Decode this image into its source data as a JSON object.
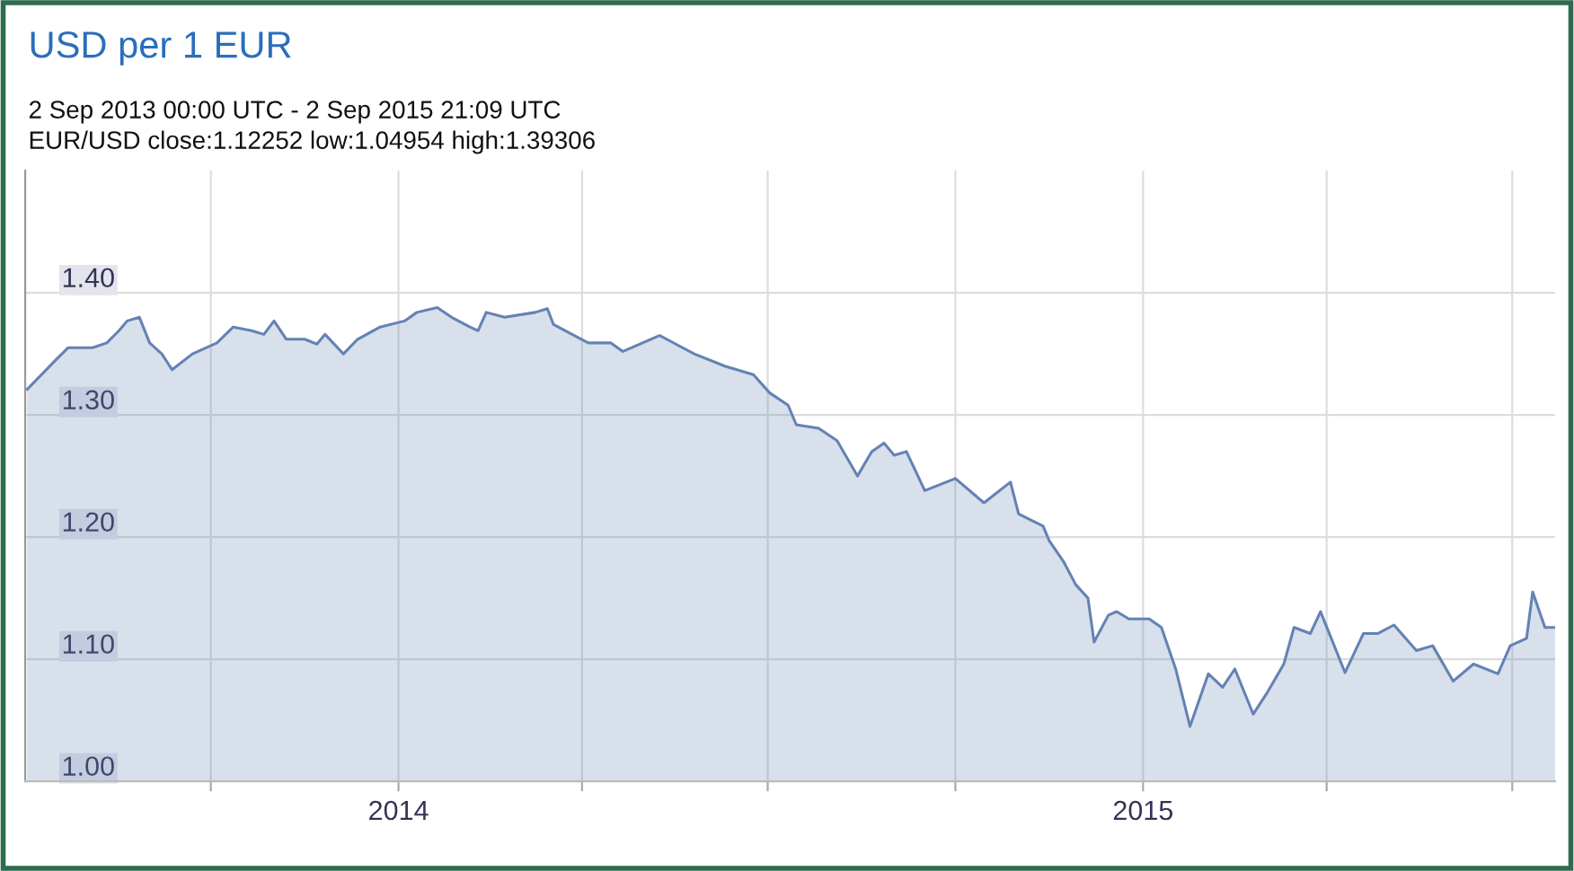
{
  "chart_data": {
    "type": "area",
    "title": "USD per 1 EUR",
    "subtitle": "2 Sep 2013 00:00 UTC - 2 Sep 2015 21:09 UTC",
    "annotations": [
      "EUR/USD close:1.12252 low:1.04954 high:1.39306"
    ],
    "x": [
      "2013-07-03",
      "2013-07-17",
      "2013-07-23",
      "2013-08-04",
      "2013-08-11",
      "2013-08-17",
      "2013-08-21",
      "2013-08-27",
      "2013-09-01",
      "2013-09-07",
      "2013-09-12",
      "2013-09-22",
      "2013-10-04",
      "2013-10-12",
      "2013-10-21",
      "2013-10-27",
      "2013-11-01",
      "2013-11-07",
      "2013-11-16",
      "2013-11-22",
      "2013-11-26",
      "2013-12-05",
      "2013-12-12",
      "2013-12-23",
      "2014-01-04",
      "2014-01-10",
      "2014-01-20",
      "2014-01-27",
      "2014-02-05",
      "2014-02-09",
      "2014-02-13",
      "2014-02-22",
      "2014-03-09",
      "2014-03-15",
      "2014-03-18",
      "2014-04-04",
      "2014-04-15",
      "2014-04-21",
      "2014-05-09",
      "2014-05-17",
      "2014-05-26",
      "2014-06-10",
      "2014-06-24",
      "2014-07-02",
      "2014-07-11",
      "2014-07-15",
      "2014-07-26",
      "2014-08-04",
      "2014-08-14",
      "2014-08-21",
      "2014-08-27",
      "2014-09-01",
      "2014-09-07",
      "2014-09-16",
      "2014-10-01",
      "2014-10-15",
      "2014-10-28",
      "2014-11-01",
      "2014-11-13",
      "2014-11-16",
      "2014-11-23",
      "2014-11-29",
      "2014-12-05",
      "2014-12-08",
      "2014-12-15",
      "2014-12-19",
      "2014-12-25",
      "2015-01-04",
      "2015-01-10",
      "2015-01-17",
      "2015-01-24",
      "2015-02-02",
      "2015-02-09",
      "2015-02-15",
      "2015-02-24",
      "2015-03-03",
      "2015-03-11",
      "2015-03-16",
      "2015-03-24",
      "2015-03-29",
      "2015-04-10",
      "2015-04-19",
      "2015-04-26",
      "2015-05-04",
      "2015-05-15",
      "2015-05-23",
      "2015-06-02",
      "2015-06-12",
      "2015-06-24",
      "2015-06-30",
      "2015-07-08",
      "2015-07-11",
      "2015-07-17",
      "2015-07-22"
    ],
    "series": [
      {
        "color": "#6482b4",
        "values": [
          1.321,
          1.345,
          1.355,
          1.355,
          1.359,
          1.369,
          1.377,
          1.38,
          1.359,
          1.35,
          1.337,
          1.35,
          1.359,
          1.372,
          1.369,
          1.366,
          1.377,
          1.362,
          1.362,
          1.358,
          1.366,
          1.35,
          1.362,
          1.372,
          1.377,
          1.384,
          1.388,
          1.38,
          1.372,
          1.369,
          1.384,
          1.38,
          1.384,
          1.387,
          1.374,
          1.359,
          1.359,
          1.352,
          1.365,
          1.358,
          1.35,
          1.34,
          1.333,
          1.318,
          1.308,
          1.292,
          1.289,
          1.279,
          1.25,
          1.27,
          1.277,
          1.267,
          1.27,
          1.238,
          1.248,
          1.228,
          1.245,
          1.219,
          1.209,
          1.197,
          1.18,
          1.161,
          1.15,
          1.114,
          1.136,
          1.139,
          1.133,
          1.133,
          1.126,
          1.092,
          1.045,
          1.088,
          1.077,
          1.092,
          1.055,
          1.073,
          1.096,
          1.126,
          1.121,
          1.139,
          1.089,
          1.121,
          1.121,
          1.128,
          1.107,
          1.111,
          1.082,
          1.096,
          1.088,
          1.111,
          1.117,
          1.155,
          1.126,
          1.126
        ]
      }
    ],
    "xlim": [
      "2013-07-02",
      "2015-07-22"
    ],
    "xticks": [
      {
        "value": "2013-10-01",
        "label": null
      },
      {
        "value": "2014-01-01",
        "label": "2014"
      },
      {
        "value": "2014-04-01",
        "label": null
      },
      {
        "value": "2014-07-01",
        "label": null
      },
      {
        "value": "2014-10-01",
        "label": null
      },
      {
        "value": "2015-01-01",
        "label": "2015"
      },
      {
        "value": "2015-04-01",
        "label": null
      },
      {
        "value": "2015-07-01",
        "label": null
      }
    ],
    "ylim": [
      1.0,
      1.5
    ],
    "yticks": [
      {
        "value": 1.0,
        "label": "1.00"
      },
      {
        "value": 1.1,
        "label": "1.10"
      },
      {
        "value": 1.2,
        "label": "1.20"
      },
      {
        "value": 1.3,
        "label": "1.30"
      },
      {
        "value": 1.4,
        "label": "1.40"
      }
    ],
    "grid": true
  }
}
